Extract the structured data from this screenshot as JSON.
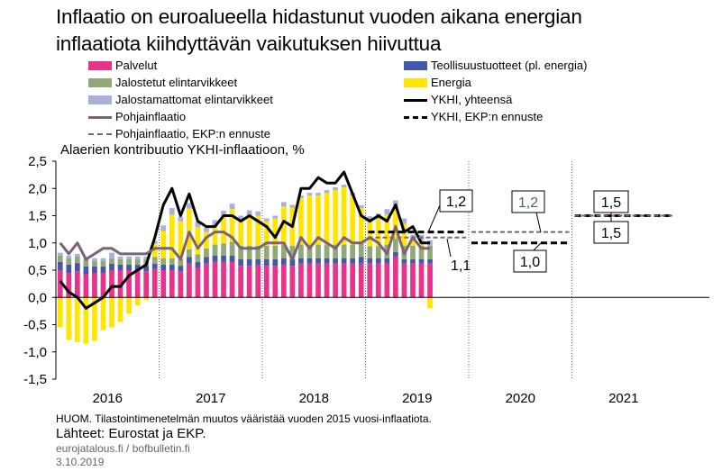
{
  "title": {
    "line1": "Inflaatio on euroalueella hidastunut vuoden aikana energian",
    "line2": "inflaatiota kiihdyttävän vaikutuksen hiivuttua"
  },
  "subtitle": "Alaerien kontribuutio YKHI-inflaatioon, %",
  "legend": {
    "palvelut": "Palvelut",
    "teollisuus": "Teollisuustuotteet (pl. energia)",
    "jalostetut": "Jalostetut elintarvikkeet",
    "energia": "Energia",
    "jalostamattomat": "Jalostamattomat elintarvikkeet",
    "ykhi": "YKHI, yhteensä",
    "pohja": "Pohjainflaatio",
    "ykhi_ennuste": "YKHI, EKP:n ennuste",
    "pohja_ennuste": "Pohjainflaatio, EKP:n ennuste"
  },
  "colors": {
    "palvelut": "#e8338a",
    "teollisuus": "#4656a8",
    "jalostetut": "#8faa77",
    "energia": "#ffe500",
    "jalostamattomat": "#a9b0dc",
    "ykhi": "#000000",
    "pohja": "#7b6377",
    "pohja_ennuste": "#7b6377"
  },
  "annotations": {
    "a1": "1,2",
    "a2": "1,1",
    "a3": "1,2",
    "a4": "1,0",
    "a5": "1,5",
    "a6": "1,5"
  },
  "footer": {
    "note": "HUOM. Tilastointimenetelmän muutos vääristää vuoden 2015 vuosi-inflaatiota.",
    "sources": "Lähteet: Eurostat ja EKP.",
    "site": "eurojatalous.fi / bofbulletin.fi",
    "date": "3.10.2019"
  },
  "chart_data": {
    "type": "bar",
    "stacked": true,
    "ylim": [
      -1.5,
      2.5
    ],
    "yticks": [
      "2,5",
      "2,0",
      "1,5",
      "1,0",
      "0,5",
      "0,0",
      "-0,5",
      "-1,0",
      "-1,5"
    ],
    "ytick_values": [
      2.5,
      2.0,
      1.5,
      1.0,
      0.5,
      0.0,
      -0.5,
      -1.0,
      -1.5
    ],
    "year_labels": [
      "2016",
      "2017",
      "2018",
      "2019",
      "2020",
      "2021"
    ],
    "months": [
      "2016-01",
      "2016-02",
      "2016-03",
      "2016-04",
      "2016-05",
      "2016-06",
      "2016-07",
      "2016-08",
      "2016-09",
      "2016-10",
      "2016-11",
      "2016-12",
      "2017-01",
      "2017-02",
      "2017-03",
      "2017-04",
      "2017-05",
      "2017-06",
      "2017-07",
      "2017-08",
      "2017-09",
      "2017-10",
      "2017-11",
      "2017-12",
      "2018-01",
      "2018-02",
      "2018-03",
      "2018-04",
      "2018-05",
      "2018-06",
      "2018-07",
      "2018-08",
      "2018-09",
      "2018-10",
      "2018-11",
      "2018-12",
      "2019-01",
      "2019-02",
      "2019-03",
      "2019-04",
      "2019-05",
      "2019-06",
      "2019-07",
      "2019-08"
    ],
    "series": [
      {
        "key": "palvelut",
        "name": "Palvelut",
        "values": [
          0.5,
          0.45,
          0.48,
          0.42,
          0.45,
          0.45,
          0.5,
          0.5,
          0.5,
          0.5,
          0.48,
          0.52,
          0.5,
          0.5,
          0.48,
          0.62,
          0.55,
          0.62,
          0.65,
          0.65,
          0.65,
          0.58,
          0.58,
          0.6,
          0.58,
          0.58,
          0.6,
          0.58,
          0.62,
          0.62,
          0.62,
          0.62,
          0.62,
          0.62,
          0.62,
          0.62,
          0.62,
          0.62,
          0.62,
          0.75,
          0.62,
          0.62,
          0.62,
          0.62
        ]
      },
      {
        "key": "teollisuus",
        "name": "Teollisuustuotteet (pl. energia)",
        "values": [
          0.15,
          0.15,
          0.15,
          0.15,
          0.12,
          0.12,
          0.12,
          0.1,
          0.1,
          0.1,
          0.1,
          0.1,
          0.1,
          0.1,
          0.1,
          0.12,
          0.1,
          0.12,
          0.12,
          0.12,
          0.12,
          0.12,
          0.12,
          0.1,
          0.12,
          0.12,
          0.12,
          0.12,
          0.1,
          0.1,
          0.1,
          0.1,
          0.1,
          0.1,
          0.1,
          0.12,
          0.1,
          0.1,
          0.1,
          0.08,
          0.08,
          0.08,
          0.08,
          0.08
        ]
      },
      {
        "key": "jalostetut",
        "name": "Jalostetut elintarvikkeet",
        "values": [
          0.12,
          0.12,
          0.12,
          0.12,
          0.1,
          0.1,
          0.1,
          0.1,
          0.1,
          0.1,
          0.12,
          0.12,
          0.12,
          0.12,
          0.12,
          0.14,
          0.14,
          0.16,
          0.2,
          0.22,
          0.25,
          0.25,
          0.25,
          0.25,
          0.25,
          0.25,
          0.25,
          0.25,
          0.25,
          0.25,
          0.25,
          0.25,
          0.25,
          0.25,
          0.25,
          0.25,
          0.22,
          0.22,
          0.25,
          0.25,
          0.25,
          0.25,
          0.25,
          0.25
        ]
      },
      {
        "key": "energia",
        "name": "Energia",
        "values": [
          -0.55,
          -0.78,
          -0.82,
          -0.85,
          -0.8,
          -0.6,
          -0.55,
          -0.45,
          -0.3,
          -0.15,
          -0.05,
          0.25,
          0.5,
          0.8,
          0.7,
          0.75,
          0.5,
          0.3,
          0.35,
          0.5,
          0.6,
          0.45,
          0.55,
          0.55,
          0.45,
          0.5,
          0.7,
          0.7,
          0.85,
          0.9,
          0.9,
          0.95,
          1.0,
          1.05,
          0.9,
          0.65,
          0.45,
          0.5,
          0.55,
          0.6,
          0.4,
          0.1,
          0.1,
          -0.2
        ]
      },
      {
        "key": "jalostamattomat",
        "name": "Jalostamattomat elintarvikkeet",
        "values": [
          0.05,
          0.05,
          0.05,
          0.05,
          0.05,
          0.05,
          0.1,
          0.05,
          0.05,
          0.05,
          0.05,
          0.05,
          0.1,
          0.12,
          0.08,
          0.1,
          0.1,
          0.08,
          0.1,
          0.1,
          0.1,
          0.1,
          0.1,
          0.08,
          0.05,
          0.05,
          0.08,
          0.05,
          0.05,
          0.05,
          0.05,
          0.05,
          0.05,
          0.05,
          0.05,
          0.05,
          0.1,
          0.1,
          0.1,
          0.1,
          0.1,
          0.1,
          0.1,
          0.1
        ]
      }
    ],
    "lines": [
      {
        "key": "ykhi",
        "name": "YKHI, yhteensä",
        "values": [
          0.3,
          0.1,
          0.0,
          -0.2,
          -0.1,
          0.0,
          0.2,
          0.2,
          0.4,
          0.5,
          0.6,
          1.1,
          1.7,
          2.0,
          1.5,
          1.9,
          1.4,
          1.3,
          1.3,
          1.5,
          1.5,
          1.4,
          1.5,
          1.4,
          1.3,
          1.1,
          1.4,
          1.3,
          2.0,
          2.0,
          2.2,
          2.1,
          2.1,
          2.3,
          1.9,
          1.5,
          1.4,
          1.5,
          1.4,
          1.7,
          1.2,
          1.3,
          1.0,
          1.0
        ]
      },
      {
        "key": "pohja",
        "name": "Pohjainflaatio",
        "values": [
          1.0,
          0.8,
          1.0,
          0.7,
          0.8,
          0.9,
          0.9,
          0.8,
          0.8,
          0.8,
          0.8,
          0.9,
          0.9,
          0.9,
          0.7,
          1.2,
          0.9,
          1.1,
          1.2,
          1.2,
          1.1,
          0.9,
          0.9,
          0.9,
          1.0,
          1.0,
          1.0,
          0.7,
          1.1,
          0.9,
          1.1,
          1.0,
          0.9,
          1.1,
          1.0,
          1.0,
          1.1,
          1.0,
          0.8,
          1.3,
          0.8,
          1.1,
          0.9,
          0.9
        ]
      }
    ],
    "forecast": [
      {
        "key": "ykhi_ennuste",
        "name": "YKHI, EKP:n ennuste",
        "segments": [
          {
            "year": 2019,
            "value": 1.2
          },
          {
            "year": 2020,
            "value": 1.0
          },
          {
            "year": 2021,
            "value": 1.5
          }
        ]
      },
      {
        "key": "pohja_ennuste",
        "name": "Pohjainflaatio, EKP:n ennuste",
        "segments": [
          {
            "year": 2019,
            "value": 1.1
          },
          {
            "year": 2020,
            "value": 1.2
          },
          {
            "year": 2021,
            "value": 1.5
          }
        ]
      }
    ],
    "grid": false
  }
}
